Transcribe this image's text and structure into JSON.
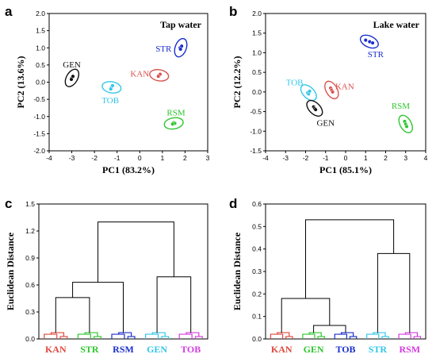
{
  "panels": [
    {
      "letter": "a"
    },
    {
      "letter": "b"
    },
    {
      "letter": "c"
    },
    {
      "letter": "d"
    }
  ],
  "colors": {
    "KAN": "#d9534f",
    "STR": "#1a2ecc",
    "TOB": "#33c6e8",
    "GEN": "#111111",
    "RSM": "#2fc62f",
    "KAN_c": "#e0483e",
    "STR_c": "#2ec72e",
    "RSM_c": "#1a2ecc",
    "GEN_c": "#33c6e8",
    "TOB_c": "#d43be0",
    "GEN_d": "#2ec72e",
    "TOB_d": "#1a2ecc",
    "STR_d": "#33c6e8",
    "RSM_d": "#d43be0"
  },
  "chart_data": [
    {
      "type": "scatter",
      "title": "Tap water",
      "xlabel": "PC1 (83.2%)",
      "ylabel": "PC2 (13.6%)",
      "xlim": [
        -4,
        3
      ],
      "ylim": [
        -2.0,
        2.0
      ],
      "xticks": [
        "-4",
        "-3",
        "-2",
        "-1",
        "0",
        "1",
        "2",
        "3"
      ],
      "yticks": [
        "-2.0",
        "-1.5",
        "-1.0",
        "-0.5",
        "0.0",
        "0.5",
        "1.0",
        "1.5",
        "2.0"
      ],
      "series": [
        {
          "name": "GEN",
          "x": [
            -3.0,
            -2.95,
            -3.02
          ],
          "y": [
            0.12,
            0.17,
            0.08
          ],
          "label_x": -3.0,
          "label_y": 0.52
        },
        {
          "name": "TOB",
          "x": [
            -1.25,
            -1.2,
            -1.28
          ],
          "y": [
            -0.15,
            -0.1,
            -0.2
          ],
          "label_x": -1.3,
          "label_y": -0.52
        },
        {
          "name": "KAN",
          "x": [
            0.85,
            0.9,
            0.82
          ],
          "y": [
            0.2,
            0.23,
            0.17
          ],
          "label_x": 0.0,
          "label_y": 0.25
        },
        {
          "name": "STR",
          "x": [
            1.78,
            1.85,
            1.8
          ],
          "y": [
            1.0,
            1.05,
            0.96
          ],
          "label_x": 1.05,
          "label_y": 0.98
        },
        {
          "name": "RSM",
          "x": [
            1.5,
            1.55,
            1.45
          ],
          "y": [
            -1.18,
            -1.2,
            -1.22
          ],
          "label_x": 1.6,
          "label_y": -0.88
        }
      ]
    },
    {
      "type": "scatter",
      "title": "Lake water",
      "xlabel": "PC1 (85.1%)",
      "ylabel": "PC2 (12.2%)",
      "xlim": [
        -4,
        4
      ],
      "ylim": [
        -1.5,
        2.0
      ],
      "xticks": [
        "-4",
        "-3",
        "-2",
        "-1",
        "0",
        "1",
        "2",
        "3",
        "4"
      ],
      "yticks": [
        "-1.5",
        "-1.0",
        "-0.5",
        "0.0",
        "0.5",
        "1.0",
        "1.5",
        "2.0"
      ],
      "series": [
        {
          "name": "STR",
          "x": [
            1.0,
            1.2,
            1.35
          ],
          "y": [
            1.32,
            1.28,
            1.25
          ],
          "label_x": 1.5,
          "label_y": 0.97
        },
        {
          "name": "KAN",
          "x": [
            -0.75,
            -0.7,
            -0.65
          ],
          "y": [
            0.1,
            0.05,
            0.0
          ],
          "label_x": -0.05,
          "label_y": 0.15
        },
        {
          "name": "TOB",
          "x": [
            -1.9,
            -1.85,
            -1.8
          ],
          "y": [
            -0.02,
            -0.05,
            0.02
          ],
          "label_x": -2.55,
          "label_y": 0.25
        },
        {
          "name": "GEN",
          "x": [
            -1.6,
            -1.55,
            -1.5
          ],
          "y": [
            -0.38,
            -0.42,
            -0.45
          ],
          "label_x": -1.0,
          "label_y": -0.78
        },
        {
          "name": "RSM",
          "x": [
            2.95,
            3.0,
            3.05
          ],
          "y": [
            -0.75,
            -0.82,
            -0.88
          ],
          "label_x": 2.75,
          "label_y": -0.35
        }
      ]
    },
    {
      "type": "dendrogram",
      "ylabel": "Euclidean Distance",
      "ylim": [
        0.0,
        1.5
      ],
      "yticks": [
        "0.0",
        "0.3",
        "0.6",
        "0.9",
        "1.2",
        "1.5"
      ],
      "leaves": [
        "KAN",
        "STR",
        "RSM",
        "GEN",
        "TOB"
      ],
      "leaf_color_keys": [
        "KAN_c",
        "STR_c",
        "RSM_c",
        "GEN_c",
        "TOB_c"
      ],
      "merges": [
        {
          "left": "KAN",
          "right": "STR",
          "height": 0.46
        },
        {
          "left": "KAN+STR",
          "right": "RSM",
          "height": 0.63
        },
        {
          "left": "GEN",
          "right": "TOB",
          "height": 0.69
        },
        {
          "left": "KAN+STR+RSM",
          "right": "GEN+TOB",
          "height": 1.3
        }
      ]
    },
    {
      "type": "dendrogram",
      "ylabel": "Euclidean Distance",
      "ylim": [
        0.0,
        0.6
      ],
      "yticks": [
        "0.0",
        "0.1",
        "0.2",
        "0.3",
        "0.4",
        "0.5",
        "0.6"
      ],
      "leaves": [
        "KAN",
        "GEN",
        "TOB",
        "STR",
        "RSM"
      ],
      "leaf_color_keys": [
        "KAN_c",
        "GEN_d",
        "TOB_d",
        "STR_d",
        "RSM_d"
      ],
      "merges": [
        {
          "left": "GEN",
          "right": "TOB",
          "height": 0.06
        },
        {
          "left": "KAN",
          "right": "GEN+TOB",
          "height": 0.18
        },
        {
          "left": "STR",
          "right": "RSM",
          "height": 0.38
        },
        {
          "left": "KAN+GEN+TOB",
          "right": "STR+RSM",
          "height": 0.53
        }
      ]
    }
  ]
}
